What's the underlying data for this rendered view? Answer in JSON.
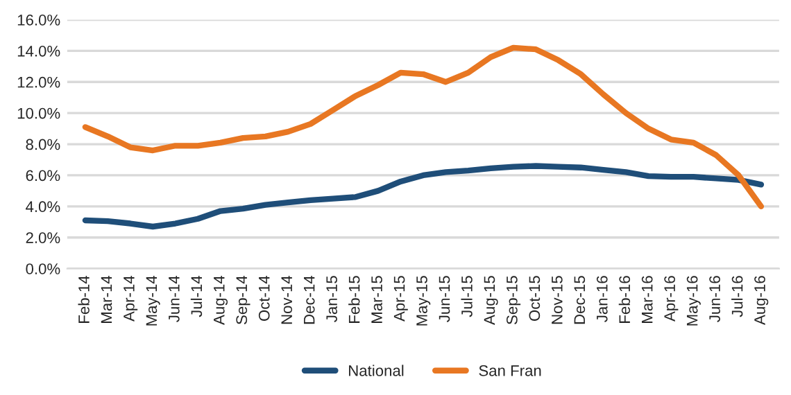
{
  "chart_data": {
    "type": "line",
    "categories": [
      "Feb-14",
      "Mar-14",
      "Apr-14",
      "May-14",
      "Jun-14",
      "Jul-14",
      "Aug-14",
      "Sep-14",
      "Oct-14",
      "Nov-14",
      "Dec-14",
      "Jan-15",
      "Feb-15",
      "Mar-15",
      "Apr-15",
      "May-15",
      "Jun-15",
      "Jul-15",
      "Aug-15",
      "Sep-15",
      "Oct-15",
      "Nov-15",
      "Dec-15",
      "Jan-16",
      "Feb-16",
      "Mar-16",
      "Apr-16",
      "May-16",
      "Jun-16",
      "Jul-16",
      "Aug-16"
    ],
    "series": [
      {
        "name": "National",
        "color": "#1f4e79",
        "values": [
          3.1,
          3.05,
          2.9,
          2.7,
          2.9,
          3.2,
          3.7,
          3.85,
          4.1,
          4.25,
          4.4,
          4.5,
          4.6,
          5.0,
          5.6,
          6.0,
          6.2,
          6.3,
          6.45,
          6.55,
          6.6,
          6.55,
          6.5,
          6.35,
          6.2,
          5.95,
          5.9,
          5.9,
          5.8,
          5.7,
          5.4
        ]
      },
      {
        "name": "San Fran",
        "color": "#e87722",
        "values": [
          9.1,
          8.5,
          7.8,
          7.6,
          7.9,
          7.9,
          8.1,
          8.4,
          8.5,
          8.8,
          9.3,
          10.2,
          11.1,
          11.8,
          12.6,
          12.5,
          12.0,
          12.6,
          13.6,
          14.2,
          14.1,
          13.4,
          12.5,
          11.2,
          10.0,
          9.0,
          8.3,
          8.1,
          7.3,
          6.0,
          4.0
        ]
      }
    ],
    "ylim": [
      0,
      16
    ],
    "yticks": [
      {
        "value": 0,
        "label": "0.0%"
      },
      {
        "value": 2,
        "label": "2.0%"
      },
      {
        "value": 4,
        "label": "4.0%"
      },
      {
        "value": 6,
        "label": "6.0%"
      },
      {
        "value": 8,
        "label": "8.0%"
      },
      {
        "value": 10,
        "label": "10.0%"
      },
      {
        "value": 12,
        "label": "12.0%"
      },
      {
        "value": 14,
        "label": "14.0%"
      },
      {
        "value": 16,
        "label": "16.0%"
      }
    ],
    "grid": "y",
    "legend": "bottom",
    "marker": "none",
    "line_style": "solid"
  }
}
